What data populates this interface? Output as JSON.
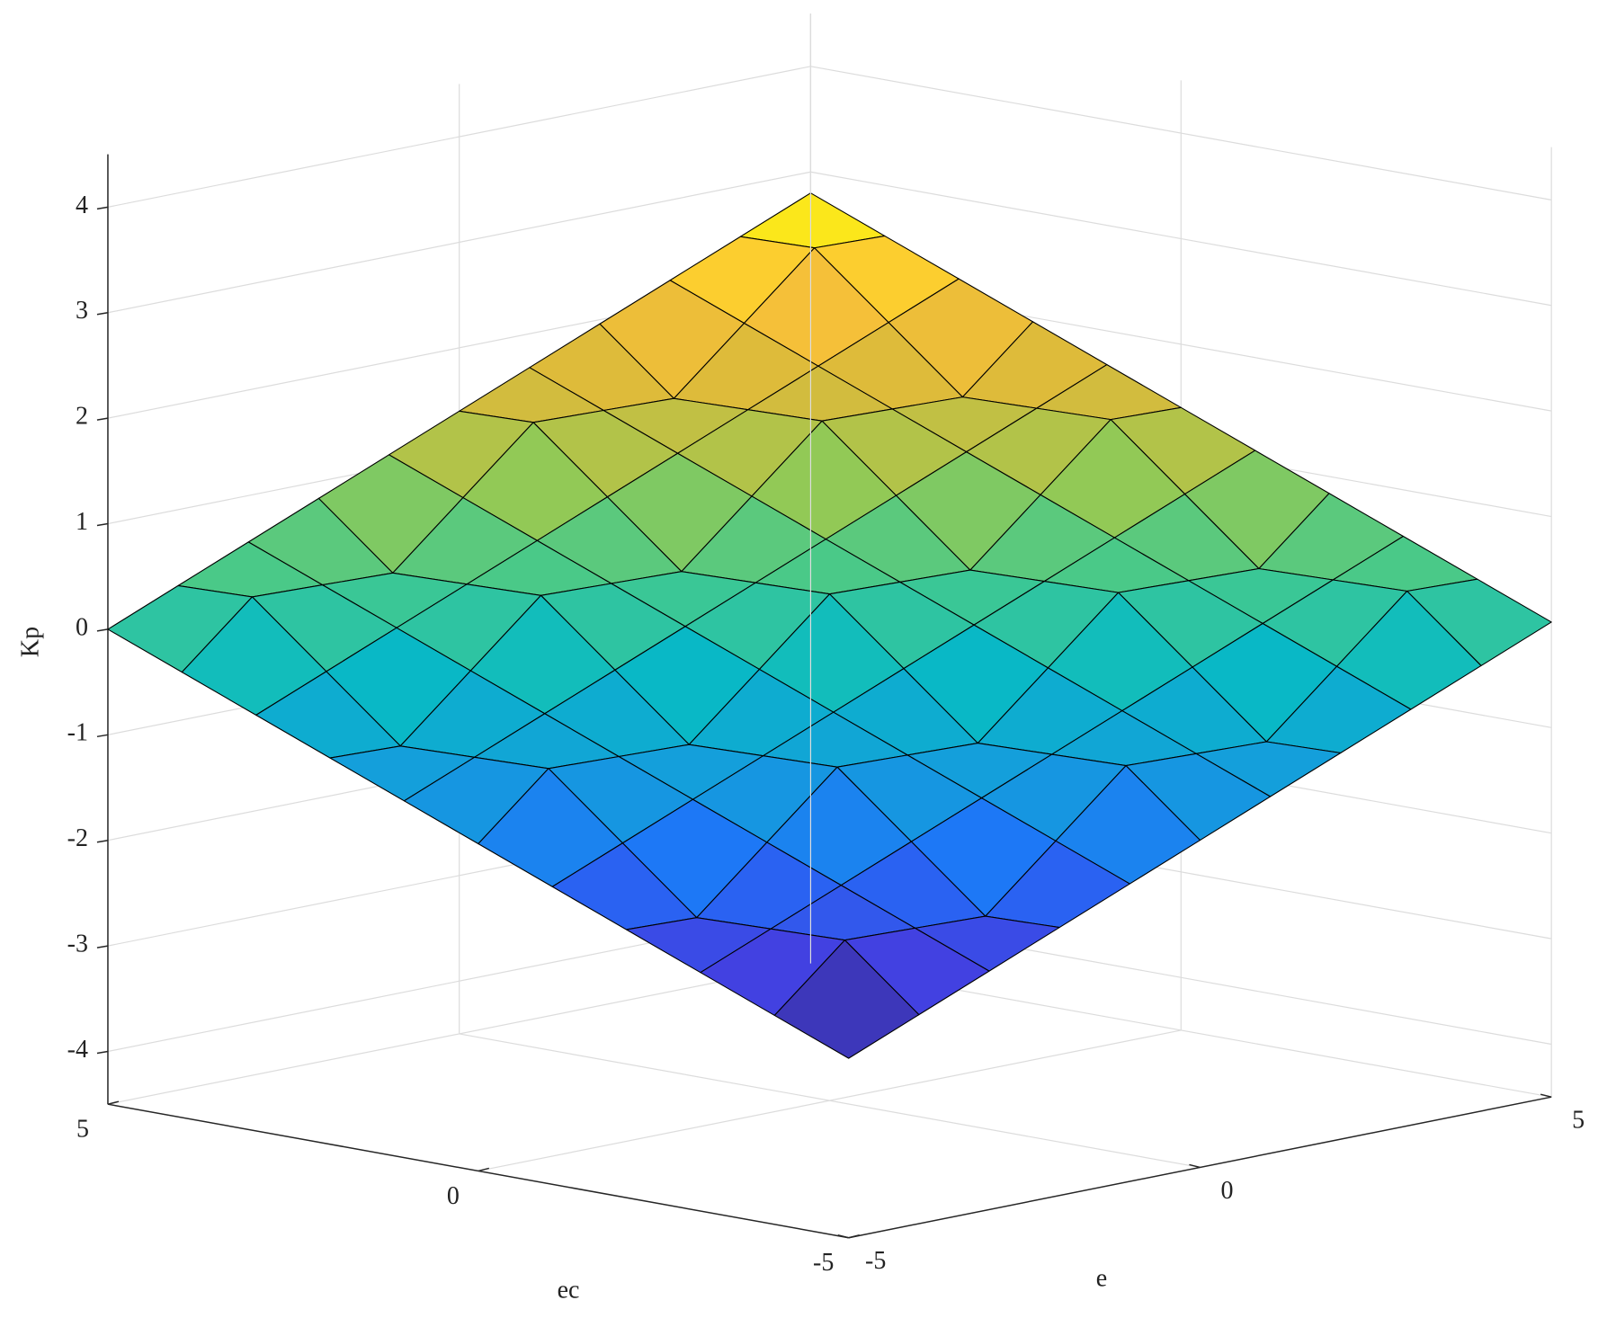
{
  "chart_data": {
    "type": "surface",
    "x": [
      -5,
      -4,
      -3,
      -2,
      -1,
      0,
      1,
      2,
      3,
      4,
      5
    ],
    "y": [
      -5,
      -4,
      -3,
      -2,
      -1,
      0,
      1,
      2,
      3,
      4,
      5
    ],
    "z": [
      [
        -2.8,
        -2.52,
        -2.24,
        -1.96,
        -1.68,
        -1.4,
        -1.12,
        -0.84,
        -0.56,
        -0.28,
        0
      ],
      [
        -2.52,
        -1.94,
        -1.96,
        -1.98,
        -1.4,
        -0.82,
        -0.84,
        -0.86,
        -0.28,
        0.3,
        0.28
      ],
      [
        -2.24,
        -1.96,
        -1.68,
        -1.4,
        -1.12,
        -0.84,
        -0.56,
        -0.28,
        0,
        0.28,
        0.56
      ],
      [
        -1.96,
        -1.98,
        -1.4,
        -0.82,
        -0.84,
        -0.86,
        -0.28,
        0.3,
        0.28,
        0.26,
        0.84
      ],
      [
        -1.68,
        -1.4,
        -1.12,
        -0.84,
        -0.56,
        -0.28,
        0,
        0.28,
        0.56,
        0.84,
        1.12
      ],
      [
        -1.4,
        -0.82,
        -0.84,
        -0.86,
        -0.28,
        0.3,
        0.28,
        0.26,
        0.84,
        1.42,
        1.4
      ],
      [
        -1.12,
        -0.84,
        -0.56,
        -0.28,
        0,
        0.28,
        0.56,
        0.84,
        1.12,
        1.4,
        1.68
      ],
      [
        -0.84,
        -0.86,
        -0.28,
        0.3,
        0.28,
        0.26,
        0.84,
        1.42,
        1.4,
        1.38,
        1.96
      ],
      [
        -0.56,
        -0.28,
        0,
        0.28,
        0.56,
        0.84,
        1.12,
        1.4,
        1.68,
        1.96,
        2.24
      ],
      [
        -0.28,
        0.3,
        0.28,
        0.26,
        0.84,
        1.42,
        1.4,
        1.38,
        1.96,
        2.54,
        2.52
      ],
      [
        0,
        0.28,
        0.56,
        0.84,
        1.12,
        1.4,
        1.68,
        1.96,
        2.24,
        2.52,
        2.8
      ]
    ],
    "xlabel": "e",
    "ylabel": "ec",
    "zlabel": "Kp",
    "xlim": [
      -5,
      5
    ],
    "ylim": [
      -5,
      5
    ],
    "zlim": [
      -4.5,
      4.5
    ],
    "xticks": [
      -5,
      0,
      5
    ],
    "yticks": [
      -5,
      0,
      5
    ],
    "zticks": [
      -4,
      -3,
      -2,
      -1,
      0,
      1,
      2,
      3,
      4
    ],
    "grid": true,
    "colormap": "parula",
    "edgecolor": "#000000"
  }
}
